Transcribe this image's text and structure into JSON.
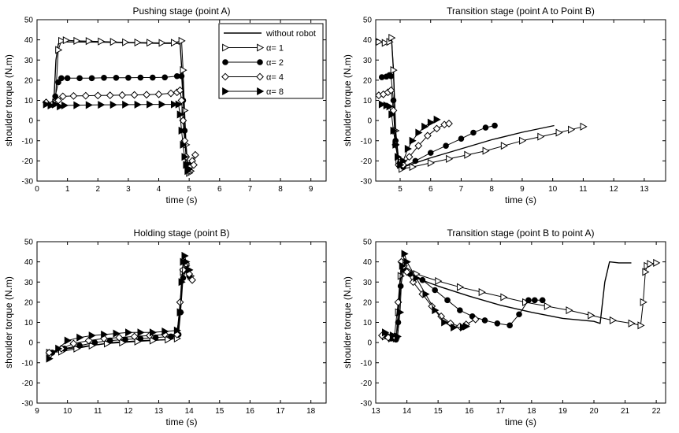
{
  "chart_data": [
    {
      "type": "line",
      "title": "Pushing stage (point A)",
      "xlabel": "time (s)",
      "ylabel": "shoulder torque (N.m)",
      "xlim": [
        0,
        9.5
      ],
      "ylim": [
        -30,
        50
      ],
      "xticks": [
        0,
        1,
        2,
        3,
        4,
        5,
        6,
        7,
        8,
        9
      ],
      "yticks": [
        -30,
        -20,
        -10,
        0,
        10,
        20,
        30,
        40,
        50
      ],
      "legend": {
        "placement": "top-right",
        "entries": [
          "without robot",
          "α= 1",
          "α= 2",
          "α= 4",
          "α= 8"
        ]
      },
      "series": [
        {
          "name": "without robot",
          "marker": "none",
          "x": [
            0.55,
            0.62,
            0.7,
            0.8,
            0.95,
            2.0,
            3.0,
            4.0,
            4.7,
            4.78,
            4.85,
            4.95,
            5.05
          ],
          "y": [
            8,
            30,
            38,
            39,
            39,
            38.9,
            38.6,
            38.3,
            38.3,
            20,
            -5,
            -22,
            -24
          ]
        },
        {
          "name": "α= 1",
          "marker": "tri-right-open",
          "x": [
            0.6,
            0.7,
            0.8,
            0.95,
            1.3,
            1.7,
            2.1,
            2.5,
            2.9,
            3.3,
            3.7,
            4.1,
            4.5,
            4.75,
            4.8,
            4.85,
            4.9,
            4.95,
            5.0,
            5.05
          ],
          "y": [
            9,
            35,
            39.5,
            39.8,
            39.5,
            39.4,
            39.2,
            39.0,
            38.8,
            38.7,
            38.6,
            38.5,
            38.6,
            39.5,
            25,
            5,
            -12,
            -22,
            -26,
            -25
          ]
        },
        {
          "name": "α= 2",
          "marker": "circle-filled",
          "x": [
            0.5,
            0.6,
            0.7,
            0.8,
            1.0,
            1.4,
            1.8,
            2.2,
            2.6,
            3.0,
            3.4,
            3.8,
            4.2,
            4.6,
            4.75,
            4.8,
            4.85,
            4.9,
            4.95,
            5.0
          ],
          "y": [
            8,
            12,
            19,
            21,
            21,
            21,
            21,
            21.2,
            21.2,
            21.2,
            21.3,
            21.3,
            21.4,
            22,
            22,
            10,
            -5,
            -18,
            -24,
            -22
          ]
        },
        {
          "name": "α= 4",
          "marker": "diamond-open",
          "x": [
            0.3,
            0.5,
            0.7,
            0.85,
            1.2,
            1.6,
            2.0,
            2.4,
            2.8,
            3.2,
            3.6,
            4.0,
            4.4,
            4.6,
            4.7,
            4.75,
            4.8,
            4.85,
            4.9,
            5.0,
            5.1,
            5.2,
            5.15
          ],
          "y": [
            9,
            8,
            10,
            12,
            12.2,
            12.3,
            12.4,
            12.5,
            12.6,
            12.7,
            12.8,
            13,
            13.5,
            14,
            15,
            10,
            0,
            -10,
            -18,
            -23,
            -20,
            -17,
            -22
          ]
        },
        {
          "name": "α= 8",
          "marker": "tri-right-filled",
          "x": [
            0.3,
            0.45,
            0.6,
            0.75,
            0.9,
            1.3,
            1.7,
            2.1,
            2.5,
            2.9,
            3.3,
            3.7,
            4.1,
            4.5,
            4.65,
            4.7,
            4.75,
            4.8,
            4.85,
            4.9,
            4.95,
            5.0
          ],
          "y": [
            8,
            7.5,
            8,
            7,
            7.5,
            7.6,
            7.7,
            7.8,
            7.8,
            7.9,
            7.9,
            8,
            8,
            8,
            8,
            3,
            -5,
            -12,
            -18,
            -22,
            -25,
            -24
          ]
        }
      ]
    },
    {
      "type": "line",
      "title": "Transition stage (point A to Point B)",
      "xlabel": "time (s)",
      "ylabel": "shoulder torque (N.m)",
      "xlim": [
        4.2,
        13.7
      ],
      "ylim": [
        -30,
        50
      ],
      "xticks": [
        5,
        6,
        7,
        8,
        9,
        10,
        11,
        12,
        13
      ],
      "yticks": [
        -30,
        -20,
        -10,
        0,
        10,
        20,
        30,
        40,
        50
      ],
      "series": [
        {
          "name": "without robot",
          "marker": "none",
          "x": [
            4.3,
            4.5,
            4.65,
            4.72,
            4.78,
            4.85,
            4.95,
            5.1,
            6.0,
            7.0,
            8.0,
            9.0,
            10.05
          ],
          "y": [
            39,
            38.5,
            39,
            40,
            25,
            -5,
            -20,
            -23,
            -18.5,
            -14,
            -9.5,
            -5.8,
            -2.5
          ]
        },
        {
          "name": "α= 1",
          "marker": "tri-right-open",
          "x": [
            4.3,
            4.5,
            4.65,
            4.72,
            4.78,
            4.85,
            4.95,
            5.05,
            5.4,
            6.0,
            6.6,
            7.2,
            7.8,
            8.4,
            9.0,
            9.6,
            10.2,
            10.6,
            11.0
          ],
          "y": [
            39,
            38.5,
            39,
            41,
            25,
            -5,
            -20,
            -24,
            -23,
            -21,
            -19,
            -17,
            -15,
            -12.5,
            -10,
            -8,
            -6,
            -4.5,
            -3
          ]
        },
        {
          "name": "α= 2",
          "marker": "circle-filled",
          "x": [
            4.4,
            4.55,
            4.65,
            4.7,
            4.78,
            4.85,
            4.95,
            5.1,
            5.5,
            6.0,
            6.5,
            7.0,
            7.4,
            7.8,
            8.1
          ],
          "y": [
            21.5,
            21.8,
            22.5,
            22,
            10,
            -10,
            -22,
            -23,
            -20,
            -16,
            -12.5,
            -9,
            -6,
            -3.5,
            -2.5
          ]
        },
        {
          "name": "α= 4",
          "marker": "diamond-open",
          "x": [
            4.3,
            4.45,
            4.6,
            4.7,
            4.78,
            4.85,
            4.95,
            5.1,
            5.3,
            5.6,
            5.9,
            6.2,
            6.45,
            6.6
          ],
          "y": [
            12.5,
            13,
            14,
            15,
            5,
            -12,
            -22,
            -22,
            -18,
            -12.5,
            -7.5,
            -4,
            -2,
            -1.5
          ]
        },
        {
          "name": "α= 8",
          "marker": "tri-right-filled",
          "x": [
            4.4,
            4.55,
            4.65,
            4.72,
            4.78,
            4.85,
            4.92,
            5.0,
            5.1,
            5.25,
            5.4,
            5.6,
            5.8,
            6.0,
            6.2
          ],
          "y": [
            8,
            7.5,
            7,
            3,
            -5,
            -12,
            -18,
            -22,
            -20,
            -14,
            -10,
            -6,
            -3,
            -1,
            0.5
          ]
        }
      ]
    },
    {
      "type": "line",
      "title": "Holding stage (point B)",
      "xlabel": "time (s)",
      "ylabel": "shoulder torque (N.m)",
      "xlim": [
        9,
        18.5
      ],
      "ylim": [
        -30,
        50
      ],
      "xticks": [
        9,
        10,
        11,
        12,
        13,
        14,
        15,
        16,
        17,
        18
      ],
      "yticks": [
        -30,
        -20,
        -10,
        0,
        10,
        20,
        30,
        40,
        50
      ],
      "series": [
        {
          "name": "without robot",
          "marker": "none",
          "x": [
            9.4,
            9.8,
            10.5,
            11.5,
            12.5,
            13.4,
            13.65,
            13.75,
            13.85,
            14.0
          ],
          "y": [
            -5,
            -3.5,
            -2,
            0,
            1,
            1.5,
            5,
            30,
            38,
            33
          ]
        },
        {
          "name": "α= 1",
          "marker": "tri-right-open",
          "x": [
            9.4,
            9.8,
            10.3,
            10.8,
            11.3,
            11.8,
            12.3,
            12.8,
            13.3,
            13.6,
            13.7,
            13.8,
            13.9,
            14.0,
            14.05
          ],
          "y": [
            -5,
            -4.5,
            -3,
            -1.5,
            -0.5,
            0,
            0.5,
            1,
            1.5,
            2,
            15,
            35,
            38,
            36,
            33
          ]
        },
        {
          "name": "α= 2",
          "marker": "circle-filled",
          "x": [
            9.5,
            9.9,
            10.4,
            10.9,
            11.4,
            11.9,
            12.4,
            12.9,
            13.4,
            13.65,
            13.72,
            13.8,
            13.9,
            14.0
          ],
          "y": [
            -5,
            -3,
            -1.5,
            0,
            1,
            1.5,
            2,
            2.5,
            3,
            4,
            15,
            32,
            36,
            33
          ]
        },
        {
          "name": "α= 4",
          "marker": "diamond-open",
          "x": [
            9.4,
            9.8,
            10.2,
            10.7,
            11.2,
            11.7,
            12.2,
            12.7,
            13.2,
            13.6,
            13.7,
            13.8,
            13.9,
            14.0,
            14.1
          ],
          "y": [
            -5,
            -3,
            -0.5,
            1,
            2,
            2.5,
            3,
            3.5,
            4,
            4,
            20,
            36,
            39,
            34,
            31
          ]
        },
        {
          "name": "α= 8",
          "marker": "tri-right-filled",
          "x": [
            9.4,
            9.7,
            10.0,
            10.4,
            10.8,
            11.2,
            11.6,
            12.0,
            12.4,
            12.8,
            13.2,
            13.6,
            13.7,
            13.75,
            13.8,
            13.85,
            13.9,
            14.0
          ],
          "y": [
            -8,
            -3,
            1,
            2.5,
            3.5,
            4,
            4.5,
            5,
            5,
            5,
            5.5,
            6,
            15,
            30,
            40,
            43,
            40,
            36
          ]
        }
      ]
    },
    {
      "type": "line",
      "title": "Transition stage (point B to point A)",
      "xlabel": "time (s)",
      "ylabel": "shoulder torque (N.m)",
      "xlim": [
        13,
        22.3
      ],
      "ylim": [
        -30,
        50
      ],
      "xticks": [
        13,
        14,
        15,
        16,
        17,
        18,
        19,
        20,
        21,
        22
      ],
      "yticks": [
        -30,
        -20,
        -10,
        0,
        10,
        20,
        30,
        40,
        50
      ],
      "series": [
        {
          "name": "without robot",
          "marker": "none",
          "x": [
            13.3,
            13.5,
            13.65,
            13.72,
            13.78,
            13.85,
            13.95,
            14.3,
            15.0,
            16.0,
            17.0,
            18.0,
            19.0,
            20.0,
            20.2,
            20.35,
            20.5,
            20.8,
            21.2
          ],
          "y": [
            3,
            2,
            2,
            10,
            30,
            38,
            36,
            32,
            28,
            23,
            18.5,
            15,
            12,
            10.5,
            9.5,
            30,
            40,
            39.5,
            39.5
          ]
        },
        {
          "name": "α= 1",
          "marker": "tri-right-open",
          "x": [
            13.3,
            13.5,
            13.65,
            13.72,
            13.8,
            13.9,
            14.3,
            15.0,
            15.7,
            16.4,
            17.1,
            17.8,
            18.5,
            19.2,
            19.9,
            20.6,
            21.2,
            21.5,
            21.58,
            21.65,
            21.7,
            21.8,
            22.0
          ],
          "y": [
            3,
            2,
            2,
            15,
            33,
            38,
            34,
            30.5,
            27.5,
            25,
            22.5,
            20,
            18,
            16,
            13.5,
            11,
            9.5,
            8.5,
            20,
            35,
            38,
            39,
            39.5
          ]
        },
        {
          "name": "α= 2",
          "marker": "circle-filled",
          "x": [
            13.35,
            13.5,
            13.65,
            13.72,
            13.8,
            13.9,
            14.1,
            14.5,
            14.9,
            15.3,
            15.7,
            16.1,
            16.5,
            16.9,
            17.3,
            17.6,
            17.9,
            18.1,
            18.35
          ],
          "y": [
            3,
            2,
            1.5,
            10,
            28,
            36,
            34,
            31,
            26,
            21,
            16,
            13,
            11,
            9.5,
            8.5,
            14,
            21,
            21,
            21
          ]
        },
        {
          "name": "α= 4",
          "marker": "diamond-open",
          "x": [
            13.2,
            13.4,
            13.6,
            13.72,
            13.82,
            13.9,
            14.0,
            14.2,
            14.5,
            14.8,
            15.1,
            15.4,
            15.7,
            15.9,
            16.2
          ],
          "y": [
            3.5,
            2.5,
            3,
            20,
            40,
            38,
            35,
            30,
            24,
            18,
            13,
            9.5,
            8,
            9,
            11.5
          ]
        },
        {
          "name": "α= 8",
          "marker": "tri-right-filled",
          "x": [
            13.3,
            13.55,
            13.7,
            13.78,
            13.85,
            13.92,
            14.0,
            14.3,
            14.6,
            14.9,
            15.2,
            15.5,
            15.8,
            15.9
          ],
          "y": [
            5,
            3.5,
            3,
            15,
            38,
            44,
            40,
            32,
            24,
            16,
            10,
            7.5,
            7.5,
            8
          ]
        }
      ]
    }
  ]
}
